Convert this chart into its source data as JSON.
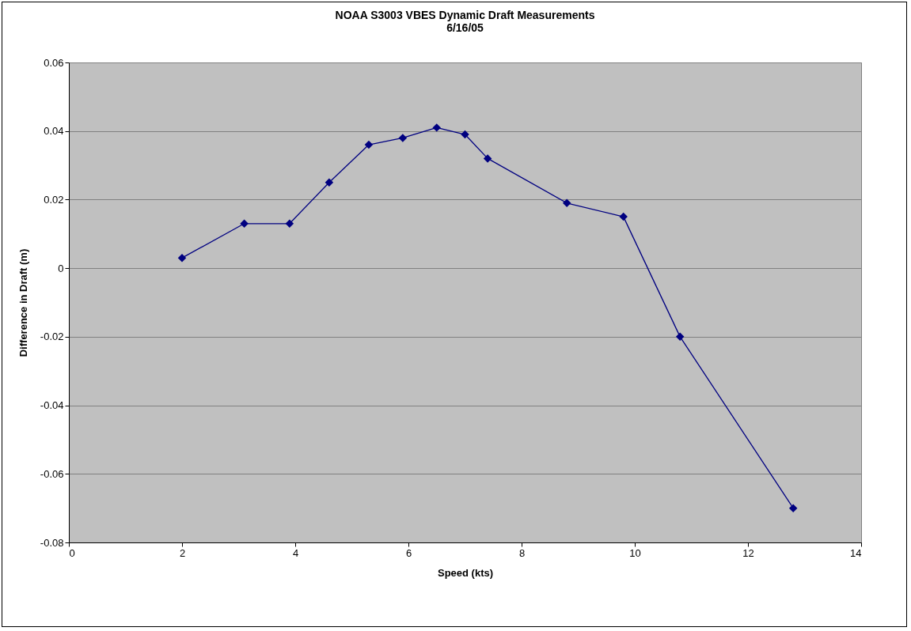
{
  "chart_data": {
    "type": "line",
    "title": "NOAA S3003 VBES Dynamic Draft Measurements",
    "subtitle": "6/16/05",
    "xlabel": "Speed (kts)",
    "ylabel": "Difference in Draft (m)",
    "x": [
      2.0,
      3.1,
      3.9,
      4.6,
      5.3,
      5.9,
      6.5,
      7.0,
      7.4,
      8.8,
      9.8,
      10.8,
      12.8
    ],
    "series": [
      {
        "color": "#000080",
        "values": [
          0.003,
          0.013,
          0.013,
          0.025,
          0.036,
          0.038,
          0.041,
          0.039,
          0.032,
          0.019,
          0.015,
          -0.02,
          -0.07
        ]
      }
    ],
    "xlim": [
      0,
      14
    ],
    "xticks": [
      0,
      2,
      4,
      6,
      8,
      10,
      12,
      14
    ],
    "ylim": [
      -0.08,
      0.06
    ],
    "yticks": [
      -0.08,
      -0.06,
      -0.04,
      -0.02,
      0,
      0.02,
      0.04,
      0.06
    ],
    "grid": "y",
    "marker": "diamond",
    "line_style": "solid"
  }
}
